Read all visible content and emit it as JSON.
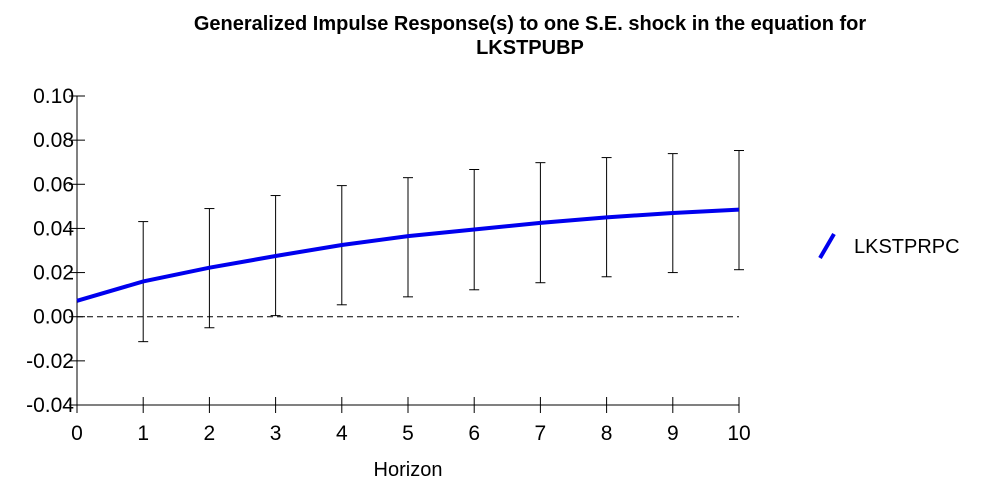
{
  "chart_data": {
    "type": "line",
    "title": [
      "Generalized Impulse Response(s) to one S.E. shock in the equation for",
      "LKSTPUBP"
    ],
    "x_label": "Horizon",
    "x": [
      0,
      1,
      2,
      3,
      4,
      5,
      6,
      7,
      8,
      9,
      10
    ],
    "xlim": [
      0,
      10
    ],
    "xticks": [
      0,
      1,
      2,
      3,
      4,
      5,
      6,
      7,
      8,
      9,
      10
    ],
    "ylim": [
      -0.04,
      0.1
    ],
    "yticks": [
      {
        "value": 0.1,
        "label": "0.10"
      },
      {
        "value": 0.08,
        "label": "0.08"
      },
      {
        "value": 0.06,
        "label": "0.06"
      },
      {
        "value": 0.04,
        "label": "0.04"
      },
      {
        "value": 0.02,
        "label": "0.02"
      },
      {
        "value": 0,
        "label": "0.00"
      },
      {
        "value": -0.02,
        "label": "-0.02"
      },
      {
        "value": -0.04,
        "label": "-0.04"
      }
    ],
    "zero_line": true,
    "legend_position": "right",
    "series": [
      {
        "name": "LKSTPRPC",
        "color": "#0000ee",
        "values": [
          0.0072,
          0.016,
          0.0222,
          0.0275,
          0.0325,
          0.0365,
          0.0395,
          0.0425,
          0.045,
          0.047,
          0.0485
        ],
        "lower": [
          null,
          -0.0113,
          -0.005,
          0.0005,
          0.0054,
          0.009,
          0.0122,
          0.0154,
          0.0181,
          0.02,
          0.0213
        ],
        "upper": [
          null,
          0.0431,
          0.049,
          0.0549,
          0.0594,
          0.063,
          0.0667,
          0.0698,
          0.0721,
          0.0739,
          0.0753
        ]
      }
    ]
  }
}
